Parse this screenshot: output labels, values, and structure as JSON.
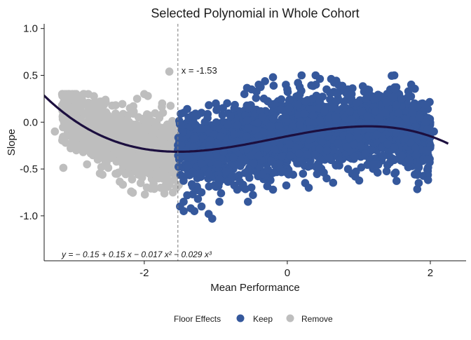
{
  "chart_data": {
    "type": "scatter",
    "title": "Selected Polynomial in Whole Cohort",
    "xlabel": "Mean Performance",
    "ylabel": "Slope",
    "xlim": [
      -3.4,
      2.5
    ],
    "ylim": [
      -1.48,
      1.05
    ],
    "x_ticks": [
      -2,
      0,
      2
    ],
    "y_ticks": [
      -1.0,
      -0.5,
      0.0,
      0.5,
      1.0
    ],
    "x_tick_labels": [
      "-2",
      "0",
      "2"
    ],
    "y_tick_labels": [
      "-1.0",
      "-0.5",
      "0.0",
      "0.5",
      "1.0"
    ],
    "grid": false,
    "legend": {
      "title": "Floor Effects",
      "position": "bottom",
      "entries": [
        {
          "label": "Keep",
          "color": "#35589c"
        },
        {
          "label": "Remove",
          "color": "#bebebe"
        }
      ]
    },
    "cutoff": {
      "x": -1.53,
      "label": "x = -1.53",
      "style": "dashed"
    },
    "curve": {
      "coefficients": [
        -0.15,
        0.15,
        -0.017,
        -0.029
      ],
      "x_range": [
        -3.5,
        2.25
      ],
      "color": "#1c0f3f"
    },
    "equation_text": "y = − 0.15 + 0.15 x − 0.017 x² − 0.029 x³",
    "series": [
      {
        "name": "Keep",
        "color": "#35589c",
        "points": [
          [
            -1.5,
            -0.9
          ],
          [
            -1.45,
            -0.85
          ],
          [
            -1.4,
            -0.78
          ],
          [
            -1.35,
            -0.92
          ],
          [
            -1.3,
            -0.95
          ],
          [
            -1.25,
            -0.82
          ],
          [
            -1.2,
            -0.9
          ],
          [
            -1.1,
            -0.98
          ],
          [
            -1.05,
            -1.03
          ],
          [
            -0.95,
            -0.85
          ],
          [
            -0.7,
            -0.72
          ],
          [
            -0.55,
            -0.85
          ],
          [
            -0.2,
            -0.72
          ],
          [
            0.25,
            -0.65
          ],
          [
            0.3,
            -0.7
          ],
          [
            0.55,
            -0.6
          ],
          [
            0.85,
            -0.5
          ],
          [
            0.95,
            -0.58
          ],
          [
            1.2,
            -0.45
          ],
          [
            1.5,
            -0.55
          ],
          [
            -1.45,
            0.1
          ],
          [
            -1.38,
            0.05
          ],
          [
            -1.2,
            0.1
          ],
          [
            -1.0,
            0.2
          ],
          [
            -0.9,
            0.15
          ],
          [
            -0.6,
            0.3
          ],
          [
            -0.5,
            0.35
          ],
          [
            -0.4,
            0.4
          ],
          [
            -0.2,
            0.48
          ],
          [
            0.0,
            0.35
          ],
          [
            0.15,
            0.42
          ],
          [
            0.2,
            0.5
          ],
          [
            0.35,
            0.25
          ],
          [
            0.4,
            0.4
          ],
          [
            0.55,
            0.35
          ],
          [
            0.7,
            0.3
          ],
          [
            0.9,
            0.3
          ],
          [
            1.1,
            0.25
          ],
          [
            1.3,
            0.28
          ],
          [
            1.5,
            0.35
          ],
          [
            1.6,
            0.25
          ],
          [
            1.75,
            0.1
          ],
          [
            1.85,
            0.05
          ],
          [
            1.9,
            -0.15
          ],
          [
            2.0,
            -0.25
          ],
          [
            2.05,
            -0.1
          ],
          [
            1.8,
            -0.35
          ],
          [
            1.7,
            -0.4
          ],
          [
            1.95,
            -0.3
          ]
        ]
      },
      {
        "name": "Remove",
        "color": "#bebebe",
        "points": [
          [
            -1.65,
            0.54
          ],
          [
            -3.15,
            0.18
          ],
          [
            -3.05,
            0.05
          ],
          [
            -3.25,
            -0.1
          ],
          [
            -3.1,
            -0.22
          ],
          [
            -2.95,
            -0.3
          ],
          [
            -2.85,
            0.1
          ],
          [
            -2.7,
            0.2
          ],
          [
            -2.6,
            0.22
          ],
          [
            -2.4,
            0.18
          ],
          [
            -2.1,
            0.25
          ],
          [
            -2.0,
            0.3
          ],
          [
            -1.95,
            0.28
          ],
          [
            -2.55,
            -0.4
          ],
          [
            -2.4,
            -0.55
          ],
          [
            -2.3,
            -0.45
          ],
          [
            -2.05,
            -0.65
          ],
          [
            -1.9,
            -0.55
          ],
          [
            -1.8,
            -0.6
          ],
          [
            -1.7,
            -0.7
          ],
          [
            -1.55,
            -0.55
          ],
          [
            -2.8,
            -0.45
          ],
          [
            -2.65,
            -0.4
          ],
          [
            -1.75,
            0.2
          ],
          [
            -2.2,
            0.15
          ]
        ]
      }
    ]
  }
}
